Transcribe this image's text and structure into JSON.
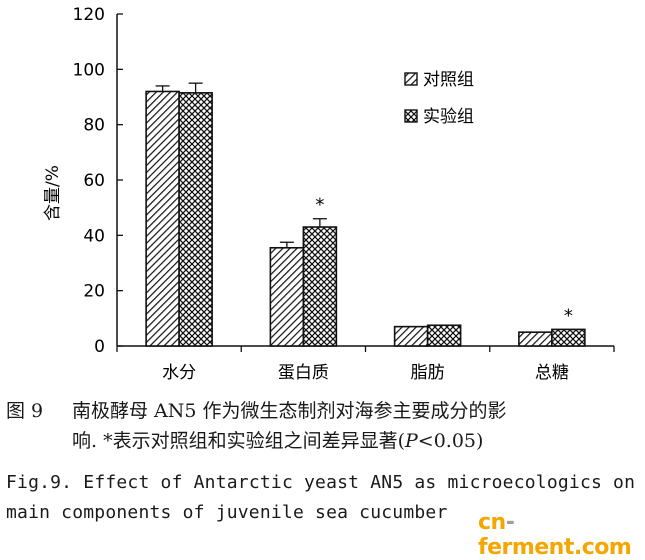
{
  "chart_data": {
    "type": "bar",
    "title": "",
    "xlabel": "",
    "ylabel": "含量/%",
    "ylim": [
      0,
      120
    ],
    "yticks": [
      0,
      20,
      40,
      60,
      80,
      100,
      120
    ],
    "categories": [
      "水分",
      "蛋白质",
      "脂肪",
      "总糖"
    ],
    "series": [
      {
        "name": "对照组",
        "pattern": "diagonal-hatch",
        "values": [
          92,
          35.5,
          7,
          5
        ],
        "errors": [
          2,
          2,
          0,
          0
        ]
      },
      {
        "name": "实验组",
        "pattern": "cross-hatch",
        "values": [
          91.5,
          43,
          7.5,
          6
        ],
        "errors": [
          3.5,
          3,
          0,
          0
        ]
      }
    ],
    "annotations": [
      {
        "category": "蛋白质",
        "series": "实验组",
        "text": "*"
      },
      {
        "category": "总糖",
        "series": "实验组",
        "text": "*"
      }
    ],
    "legend_position": "top-right",
    "grid": false
  },
  "caption": {
    "zh_number": "图 9",
    "zh_line1": "南极酵母 AN5 作为微生态制剂对海参主要成分的影",
    "zh_line2_a": "响. *表示对照组和实验组之间差异显著(",
    "zh_line2_p": "P",
    "zh_line2_b": "<0.05)",
    "en_number": "Fig.9.",
    "en_line1": "Effect of Antarctic yeast AN5 as microecologics on",
    "en_line2": "main components of juvenile sea cucumber"
  },
  "watermark": {
    "part1": "cn",
    "dash": "-",
    "part2": "ferment",
    "part3": ".com"
  },
  "colors": {
    "ink": "#111111",
    "watermark": "#f5a600",
    "watermark_dash": "#9aa0a6"
  }
}
